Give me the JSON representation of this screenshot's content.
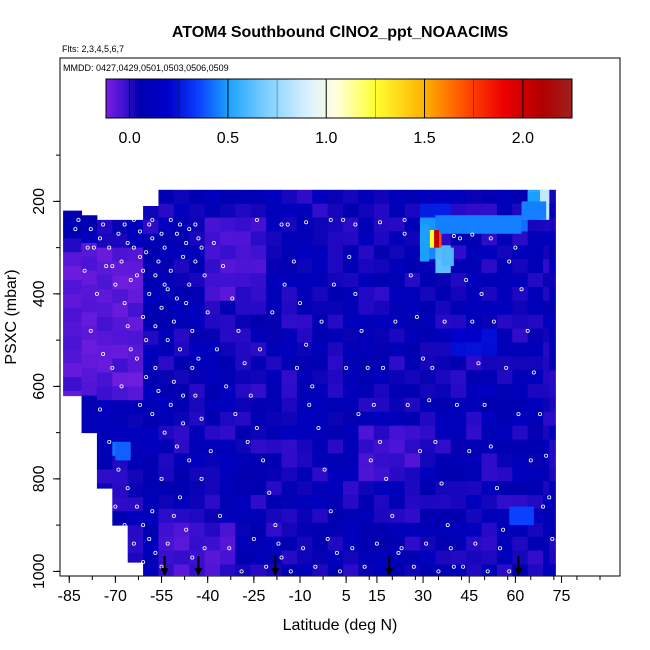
{
  "chart_data": {
    "type": "heatmap",
    "title": "ATOM4 Southbound ClNO2_ppt_NOAACIMS",
    "flights_note": "Flts: 2,3,4,5,6,7",
    "dates_note": "MMDD: 0427,0429,0501,0503,0506,0509",
    "xlabel": "Latitude (deg N)",
    "ylabel": "PSXC (mbar)",
    "x_range": [
      -88,
      94
    ],
    "y_range": [
      1010,
      -110
    ],
    "x_ticks": [
      -85,
      -70,
      -55,
      -40,
      -25,
      -10,
      5,
      15,
      30,
      45,
      60,
      75
    ],
    "x_tick_labels": [
      "-85",
      "-70",
      "-55",
      "-40",
      "-25",
      "-10",
      "5",
      "15",
      "30",
      "45",
      "60",
      "75"
    ],
    "y_ticks": [
      200,
      400,
      600,
      800,
      1000
    ],
    "y_tick_labels": [
      "200",
      "400",
      "600",
      "800",
      "1000"
    ],
    "colorbar": {
      "range": [
        -0.12,
        2.25
      ],
      "ticks": [
        0.0,
        0.5,
        1.0,
        1.5,
        2.0
      ],
      "tick_labels": [
        "0.0",
        "0.5",
        "1.0",
        "1.5",
        "2.0"
      ],
      "stops": [
        {
          "v": -0.12,
          "c": "#7b1fe0"
        },
        {
          "v": -0.02,
          "c": "#3a0fd0"
        },
        {
          "v": 0.05,
          "c": "#0000b0"
        },
        {
          "v": 0.2,
          "c": "#0000cc"
        },
        {
          "v": 0.35,
          "c": "#0a40ff"
        },
        {
          "v": 0.5,
          "c": "#1aa0ff"
        },
        {
          "v": 0.7,
          "c": "#7fd0ff"
        },
        {
          "v": 0.9,
          "c": "#d8f0ff"
        },
        {
          "v": 1.05,
          "c": "#ffffe0"
        },
        {
          "v": 1.25,
          "c": "#ffff30"
        },
        {
          "v": 1.5,
          "c": "#ffb000"
        },
        {
          "v": 1.7,
          "c": "#ff5000"
        },
        {
          "v": 1.9,
          "c": "#ee0000"
        },
        {
          "v": 2.1,
          "c": "#b00000"
        },
        {
          "v": 2.25,
          "c": "#a02020"
        }
      ]
    },
    "curtain": {
      "lat_edges": [
        -87,
        -81,
        -76,
        -71,
        -66,
        -61,
        -56,
        -51,
        -46,
        -41,
        -36,
        -31,
        -26,
        -21,
        -16,
        -11,
        -6,
        -1,
        4,
        9,
        14,
        19,
        24,
        29,
        34,
        39,
        44,
        49,
        54,
        59,
        64,
        69,
        71,
        73
      ],
      "pres_top": [
        220,
        230,
        240,
        240,
        240,
        210,
        175,
        175,
        175,
        175,
        175,
        175,
        175,
        175,
        175,
        175,
        175,
        175,
        175,
        175,
        175,
        175,
        175,
        175,
        175,
        175,
        175,
        175,
        175,
        175,
        175,
        175,
        175
      ],
      "pres_bottom": [
        620,
        700,
        820,
        900,
        980,
        1010,
        1010,
        1010,
        1010,
        1010,
        1010,
        1010,
        1010,
        1010,
        1010,
        1010,
        1010,
        1010,
        1010,
        1010,
        1010,
        1010,
        1010,
        1010,
        1010,
        1010,
        1010,
        1010,
        1010,
        1010,
        1010,
        1010,
        1010
      ],
      "base_value": 0.06,
      "features": [
        {
          "lat": [
            31,
            36
          ],
          "pres": [
            265,
            300
          ],
          "value": 1.7
        },
        {
          "lat": [
            29,
            32
          ],
          "pres": [
            250,
            330
          ],
          "value": 0.5
        },
        {
          "lat": [
            36,
            40
          ],
          "pres": [
            300,
            340
          ],
          "value": 0.6
        },
        {
          "lat": [
            34,
            62
          ],
          "pres": [
            230,
            270
          ],
          "value": 0.45
        },
        {
          "lat": [
            64,
            70
          ],
          "pres": [
            180,
            200
          ],
          "value": 0.5
        },
        {
          "lat": [
            68,
            71
          ],
          "pres": [
            175,
            240
          ],
          "value": 0.85
        },
        {
          "lat": [
            62,
            70
          ],
          "pres": [
            200,
            240
          ],
          "value": 0.45
        },
        {
          "lat": [
            28,
            40
          ],
          "pres": [
            200,
            240
          ],
          "value": 0.3
        },
        {
          "lat": [
            -87,
            -60
          ],
          "pres": [
            300,
            620
          ],
          "value": -0.06
        },
        {
          "lat": [
            -70,
            -65
          ],
          "pres": [
            720,
            760
          ],
          "value": 0.4
        },
        {
          "lat": [
            58,
            66
          ],
          "pres": [
            860,
            900
          ],
          "value": 0.35
        },
        {
          "lat": [
            -40,
            -20
          ],
          "pres": [
            250,
            400
          ],
          "value": -0.03
        },
        {
          "lat": [
            10,
            30
          ],
          "pres": [
            700,
            800
          ],
          "value": -0.02
        },
        {
          "lat": [
            -55,
            -30
          ],
          "pres": [
            900,
            1000
          ],
          "value": -0.03
        },
        {
          "lat": [
            40,
            55
          ],
          "pres": [
            480,
            520
          ],
          "value": 0.2
        }
      ]
    },
    "sample_points": [
      [
        -82,
        240
      ],
      [
        -78,
        260
      ],
      [
        -74,
        250
      ],
      [
        -72,
        300
      ],
      [
        -69,
        270
      ],
      [
        -66,
        290
      ],
      [
        -64,
        240
      ],
      [
        -62,
        265
      ],
      [
        -60,
        310
      ],
      [
        -58,
        280
      ],
      [
        -56,
        330
      ],
      [
        -54,
        300
      ],
      [
        -52,
        350
      ],
      [
        -50,
        270
      ],
      [
        -48,
        320
      ],
      [
        -46,
        380
      ],
      [
        -44,
        250
      ],
      [
        -42,
        300
      ],
      [
        -80,
        350
      ],
      [
        -76,
        400
      ],
      [
        -70,
        380
      ],
      [
        -67,
        420
      ],
      [
        -63,
        360
      ],
      [
        -61,
        450
      ],
      [
        -59,
        400
      ],
      [
        -57,
        470
      ],
      [
        -55,
        430
      ],
      [
        -53,
        500
      ],
      [
        -51,
        460
      ],
      [
        -49,
        520
      ],
      [
        -47,
        420
      ],
      [
        -45,
        480
      ],
      [
        -43,
        540
      ],
      [
        -41,
        360
      ],
      [
        -78,
        480
      ],
      [
        -74,
        530
      ],
      [
        -71,
        560
      ],
      [
        -68,
        600
      ],
      [
        -65,
        520
      ],
      [
        -62,
        640
      ],
      [
        -60,
        580
      ],
      [
        -58,
        660
      ],
      [
        -56,
        610
      ],
      [
        -54,
        700
      ],
      [
        -52,
        640
      ],
      [
        -50,
        730
      ],
      [
        -48,
        680
      ],
      [
        -46,
        760
      ],
      [
        -44,
        620
      ],
      [
        -42,
        800
      ],
      [
        -75,
        650
      ],
      [
        -72,
        720
      ],
      [
        -69,
        780
      ],
      [
        -66,
        820
      ],
      [
        -63,
        860
      ],
      [
        -61,
        900
      ],
      [
        -59,
        930
      ],
      [
        -57,
        960
      ],
      [
        -55,
        990
      ],
      [
        -53,
        940
      ],
      [
        -51,
        880
      ],
      [
        -49,
        840
      ],
      [
        -47,
        910
      ],
      [
        -45,
        970
      ],
      [
        -43,
        1000
      ],
      [
        -41,
        950
      ],
      [
        -38,
        290
      ],
      [
        -35,
        340
      ],
      [
        -32,
        410
      ],
      [
        -30,
        480
      ],
      [
        -28,
        550
      ],
      [
        -26,
        620
      ],
      [
        -24,
        690
      ],
      [
        -22,
        760
      ],
      [
        -20,
        830
      ],
      [
        -18,
        900
      ],
      [
        -16,
        970
      ],
      [
        -14,
        250
      ],
      [
        -12,
        330
      ],
      [
        -10,
        420
      ],
      [
        -8,
        510
      ],
      [
        -6,
        600
      ],
      [
        -4,
        690
      ],
      [
        -2,
        780
      ],
      [
        0,
        870
      ],
      [
        2,
        960
      ],
      [
        4,
        240
      ],
      [
        6,
        320
      ],
      [
        8,
        400
      ],
      [
        10,
        480
      ],
      [
        12,
        560
      ],
      [
        14,
        640
      ],
      [
        16,
        720
      ],
      [
        18,
        800
      ],
      [
        20,
        880
      ],
      [
        22,
        960
      ],
      [
        24,
        270
      ],
      [
        26,
        360
      ],
      [
        28,
        450
      ],
      [
        30,
        540
      ],
      [
        32,
        630
      ],
      [
        34,
        720
      ],
      [
        36,
        810
      ],
      [
        38,
        900
      ],
      [
        40,
        990
      ],
      [
        42,
        280
      ],
      [
        44,
        370
      ],
      [
        46,
        460
      ],
      [
        48,
        550
      ],
      [
        50,
        640
      ],
      [
        52,
        730
      ],
      [
        54,
        820
      ],
      [
        56,
        910
      ],
      [
        58,
        1000
      ],
      [
        60,
        300
      ],
      [
        62,
        390
      ],
      [
        64,
        480
      ],
      [
        66,
        570
      ],
      [
        68,
        660
      ],
      [
        70,
        750
      ],
      [
        71,
        840
      ],
      [
        72,
        930
      ],
      [
        -36,
        880
      ],
      [
        -33,
        950
      ],
      [
        -29,
        1000
      ],
      [
        -25,
        930
      ],
      [
        -21,
        990
      ],
      [
        -17,
        940
      ],
      [
        -13,
        1000
      ],
      [
        -9,
        950
      ],
      [
        -5,
        990
      ],
      [
        -1,
        930
      ],
      [
        3,
        1000
      ],
      [
        7,
        950
      ],
      [
        11,
        990
      ],
      [
        15,
        940
      ],
      [
        19,
        1000
      ],
      [
        23,
        950
      ],
      [
        27,
        990
      ],
      [
        31,
        940
      ],
      [
        35,
        1000
      ],
      [
        39,
        950
      ],
      [
        43,
        990
      ],
      [
        47,
        940
      ],
      [
        51,
        1000
      ],
      [
        55,
        950
      ],
      [
        -77,
        300
      ],
      [
        -73,
        340
      ],
      [
        -68,
        330
      ],
      [
        -65,
        370
      ],
      [
        -62,
        320
      ],
      [
        -59,
        250
      ],
      [
        -57,
        360
      ],
      [
        -53,
        390
      ],
      [
        -50,
        410
      ],
      [
        -47,
        290
      ],
      [
        -44,
        330
      ],
      [
        -40,
        440
      ],
      [
        -37,
        520
      ],
      [
        -34,
        600
      ],
      [
        -31,
        660
      ],
      [
        -27,
        720
      ],
      [
        -23,
        520
      ],
      [
        -19,
        440
      ],
      [
        -15,
        380
      ],
      [
        -11,
        560
      ],
      [
        -7,
        640
      ],
      [
        -3,
        460
      ],
      [
        1,
        380
      ],
      [
        5,
        560
      ],
      [
        9,
        660
      ],
      [
        13,
        760
      ],
      [
        17,
        560
      ],
      [
        21,
        460
      ],
      [
        25,
        640
      ],
      [
        29,
        740
      ],
      [
        33,
        560
      ],
      [
        37,
        460
      ],
      [
        41,
        640
      ],
      [
        45,
        740
      ],
      [
        49,
        400
      ],
      [
        53,
        460
      ],
      [
        57,
        560
      ],
      [
        61,
        660
      ],
      [
        65,
        760
      ],
      [
        69,
        860
      ],
      [
        -83,
        260
      ],
      [
        -79,
        300
      ],
      [
        -75,
        280
      ],
      [
        -71,
        340
      ],
      [
        -67,
        250
      ],
      [
        -64,
        300
      ],
      [
        -61,
        350
      ],
      [
        -58,
        240
      ],
      [
        -55,
        270
      ],
      [
        -52,
        240
      ],
      [
        -49,
        250
      ],
      [
        -46,
        260
      ],
      [
        -43,
        280
      ],
      [
        -24,
        240
      ],
      [
        -16,
        250
      ],
      [
        -8,
        245
      ],
      [
        0,
        240
      ],
      [
        8,
        250
      ],
      [
        16,
        245
      ],
      [
        24,
        240
      ],
      [
        40,
        275
      ],
      [
        46,
        272
      ],
      [
        52,
        280
      ],
      [
        58,
        330
      ],
      [
        -66,
        470
      ],
      [
        -63,
        540
      ],
      [
        -60,
        500
      ],
      [
        -57,
        560
      ],
      [
        -54,
        380
      ],
      [
        -51,
        590
      ],
      [
        -48,
        620
      ],
      [
        -45,
        560
      ],
      [
        -42,
        670
      ],
      [
        -39,
        740
      ],
      [
        -70,
        860
      ],
      [
        -67,
        900
      ],
      [
        -64,
        940
      ],
      [
        -61,
        980
      ],
      [
        -58,
        870
      ],
      [
        -55,
        800
      ]
    ],
    "flight_markers_lat": [
      -54,
      -43,
      -18,
      19,
      61
    ]
  }
}
